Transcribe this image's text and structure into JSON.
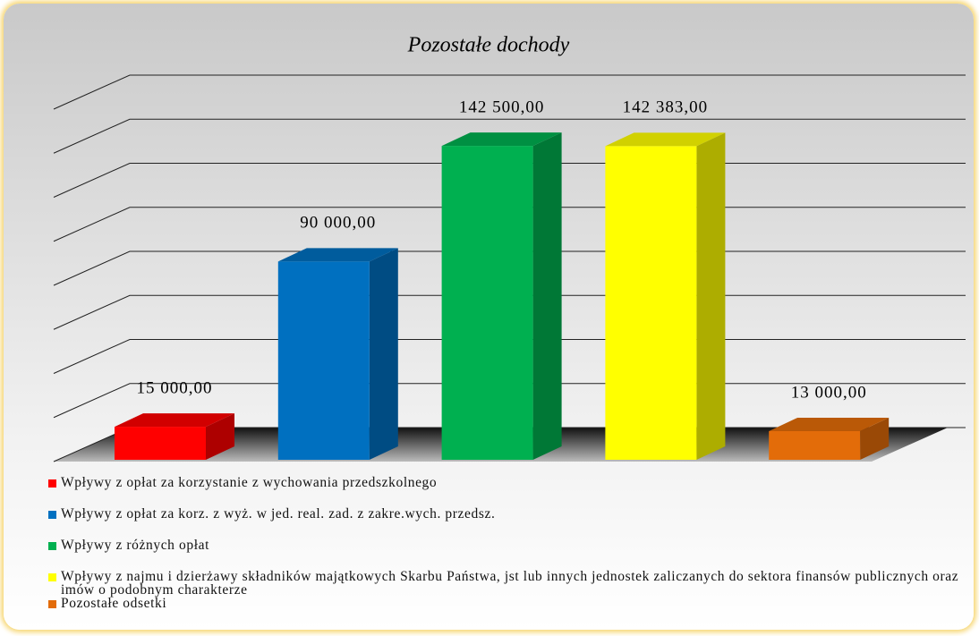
{
  "chart_data": {
    "type": "bar3d",
    "title": "Pozostałe dochody",
    "categories": [
      "Wpływy z opłat za korzystanie z wychowania przedszkolnego",
      "Wpływy z opłat za korz. z wyż. w jed. real. zad. z zakre.wych. przedsz.",
      "Wpływy z różnych opłat",
      "Wpływy z najmu i dzierżawy składników majątkowych Skarbu Państwa, jst lub innych jednostek zaliczanych do sektora finansów publicznych oraz imów o podobnym charakterze",
      "Pozostałe odsetki"
    ],
    "values": [
      15000,
      90000,
      142500,
      142383,
      13000
    ],
    "value_labels": [
      "15 000,00",
      "90 000,00",
      "142 500,00",
      "142 383,00",
      "13 000,00"
    ],
    "colors": [
      "#ff0000",
      "#0070c0",
      "#00b050",
      "#ffff00",
      "#e36c09"
    ],
    "ylim": [
      0,
      160000
    ],
    "yticks": [
      0,
      20000,
      40000,
      60000,
      80000,
      100000,
      120000,
      140000,
      160000
    ],
    "grid": true,
    "legend": "bottom"
  }
}
